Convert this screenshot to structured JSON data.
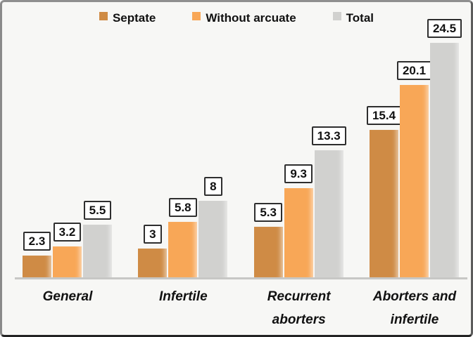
{
  "colors": {
    "background": "#f7f7f5",
    "frame_border": "#6b6b6b",
    "axis_line": "#c7c7c5",
    "data_label_box_border": "#2e2e2e",
    "data_label_box_bg": "#ffffff",
    "text": "#111111",
    "septate": "#cf8b45",
    "without_arcuate": "#f8a757",
    "total": "#d1d1cf"
  },
  "chart_data": {
    "type": "bar",
    "title": "",
    "xlabel": "",
    "ylabel": "",
    "categories": [
      "General",
      "Infertile",
      "Recurrent aborters",
      "Aborters and infertile"
    ],
    "category_lines": [
      [
        "General"
      ],
      [
        "Infertile"
      ],
      [
        "Recurrent",
        "aborters"
      ],
      [
        "Aborters and",
        "infertile"
      ]
    ],
    "series": [
      {
        "name": "Septate",
        "color": "#cf8b45",
        "values": [
          2.3,
          3,
          5.3,
          15.4
        ]
      },
      {
        "name": "Without arcuate",
        "color": "#f8a757",
        "values": [
          3.2,
          5.8,
          9.3,
          20.1
        ]
      },
      {
        "name": "Total",
        "color": "#d1d1cf",
        "values": [
          5.5,
          8,
          13.3,
          24.5
        ]
      }
    ],
    "data_labels": [
      [
        "2.3",
        "3.2",
        "5.5"
      ],
      [
        "3",
        "5.8",
        "8"
      ],
      [
        "5.3",
        "9.3",
        "13.3"
      ],
      [
        "15.4",
        "20.1",
        "24.5"
      ]
    ],
    "ylim": [
      0,
      26.5
    ],
    "grid": false,
    "legend_position": "top",
    "data_label_style": "boxed",
    "y_axis_visible": false
  }
}
